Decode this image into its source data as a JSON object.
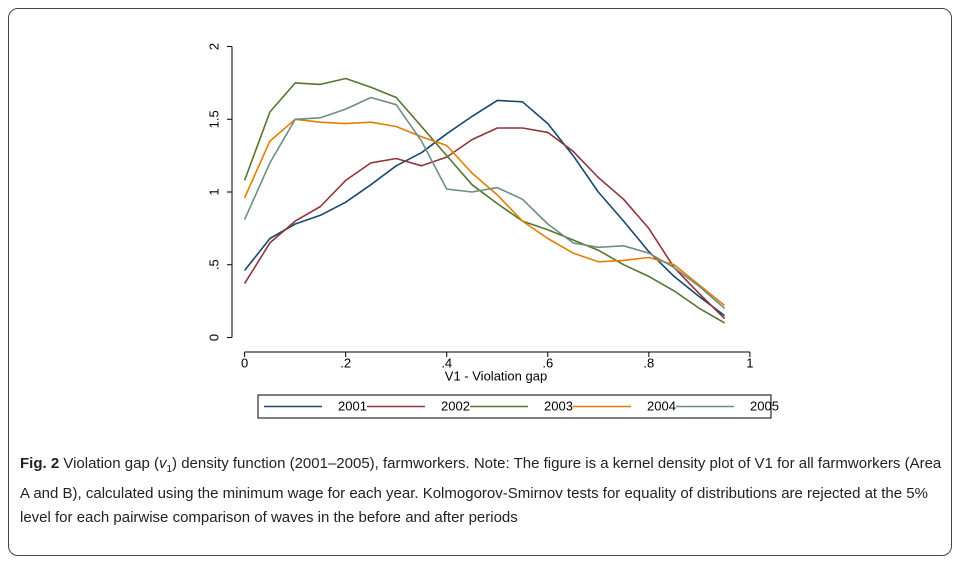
{
  "chart_data": {
    "type": "line",
    "xlabel": "V1 - Violation gap",
    "x": [
      0,
      0.05,
      0.1,
      0.15,
      0.2,
      0.25,
      0.3,
      0.35,
      0.4,
      0.45,
      0.5,
      0.55,
      0.6,
      0.65,
      0.7,
      0.75,
      0.8,
      0.85,
      0.9,
      0.95
    ],
    "series": [
      {
        "name": "2001",
        "color": "#1a476f",
        "values": [
          0.46,
          0.68,
          0.78,
          0.84,
          0.93,
          1.05,
          1.18,
          1.27,
          1.4,
          1.52,
          1.63,
          1.62,
          1.47,
          1.25,
          1.0,
          0.8,
          0.59,
          0.42,
          0.28,
          0.15
        ]
      },
      {
        "name": "2002",
        "color": "#90353b",
        "values": [
          0.37,
          0.65,
          0.8,
          0.9,
          1.08,
          1.2,
          1.23,
          1.18,
          1.24,
          1.36,
          1.44,
          1.44,
          1.41,
          1.28,
          1.1,
          0.95,
          0.75,
          0.48,
          0.3,
          0.13
        ]
      },
      {
        "name": "2003",
        "color": "#55752f",
        "values": [
          1.08,
          1.55,
          1.75,
          1.74,
          1.78,
          1.72,
          1.65,
          1.45,
          1.25,
          1.05,
          0.92,
          0.8,
          0.74,
          0.67,
          0.6,
          0.5,
          0.42,
          0.32,
          0.2,
          0.1
        ]
      },
      {
        "name": "2004",
        "color": "#e37e00",
        "values": [
          0.96,
          1.35,
          1.5,
          1.48,
          1.47,
          1.48,
          1.45,
          1.38,
          1.32,
          1.13,
          0.98,
          0.8,
          0.68,
          0.58,
          0.52,
          0.53,
          0.55,
          0.5,
          0.36,
          0.22
        ]
      },
      {
        "name": "2005",
        "color": "#6e8e84",
        "values": [
          0.81,
          1.2,
          1.5,
          1.51,
          1.57,
          1.65,
          1.6,
          1.35,
          1.02,
          1.0,
          1.03,
          0.95,
          0.78,
          0.65,
          0.62,
          0.63,
          0.58,
          0.48,
          0.35,
          0.2
        ]
      }
    ],
    "xlim": [
      -0.025,
      1.02
    ],
    "ylim": [
      -0.1,
      2.1
    ],
    "xticks": [
      0,
      {
        "value": 0.2,
        "label": ".2"
      },
      {
        "value": 0.4,
        "label": ".4"
      },
      {
        "value": 0.6,
        "label": ".6"
      },
      {
        "value": 0.8,
        "label": ".8"
      },
      1
    ],
    "yticks": [
      0,
      {
        "value": 0.5,
        "label": ".5"
      },
      1,
      {
        "value": 1.5,
        "label": "1.5"
      },
      2
    ],
    "legend": "bottom"
  },
  "caption": {
    "label": "Fig. 2",
    "text_before": "Violation gap (",
    "var": "v",
    "sub": "1",
    "text_after": ") density function (2001–2005), farmworkers. Note: The figure is a kernel density plot of V1 for all farmworkers (Area A and B), calculated using the minimum wage for each year. Kolmogorov-Smirnov tests for equality of distributions are rejected at the 5% level for each pairwise comparison of waves in the before and after periods"
  }
}
